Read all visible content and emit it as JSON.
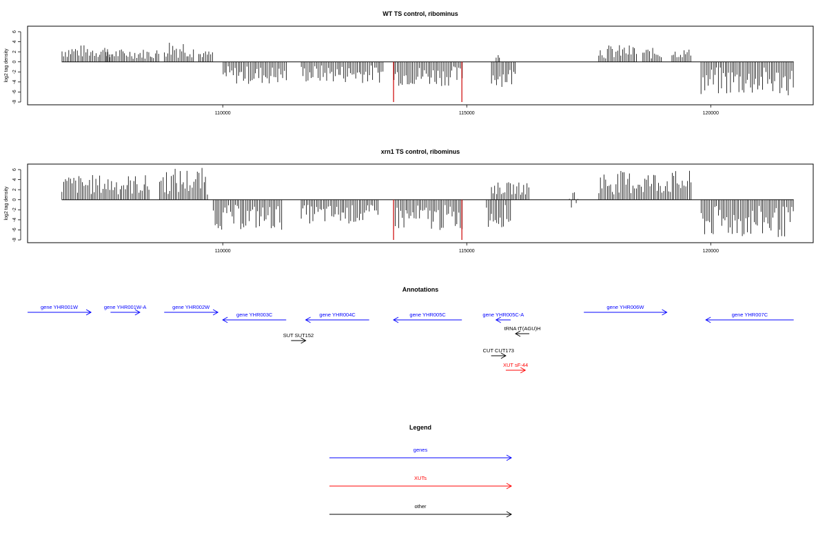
{
  "figure": {
    "annotations_title": "Annotations",
    "legend_title": "Legend"
  },
  "colors": {
    "genes": "#0000ff",
    "xuts": "#ff0000",
    "other": "#000000",
    "marker": "#cc0000"
  },
  "chart_data": [
    {
      "type": "bar",
      "title": "WT TS control, ribominus",
      "xlabel": "",
      "ylabel": "log2 tag density",
      "xlim": [
        106000,
        122100
      ],
      "ylim": [
        -8,
        6
      ],
      "x_ticks": [
        110000,
        115000,
        120000
      ],
      "y_ticks": [
        6,
        4,
        2,
        0,
        -2,
        -4,
        -6,
        -8
      ],
      "markers": [
        {
          "x": 113500,
          "y": -8
        },
        {
          "x": 114900,
          "y": -8
        }
      ],
      "segments": [
        {
          "start": 106700,
          "end": 107700,
          "min": 0.8,
          "max": 3.4
        },
        {
          "start": 107600,
          "end": 108700,
          "min": 0.6,
          "max": 2.6
        },
        {
          "start": 108800,
          "end": 109400,
          "min": 0.8,
          "max": 4.6
        },
        {
          "start": 109500,
          "end": 109800,
          "min": 0.8,
          "max": 2.2
        },
        {
          "start": 110000,
          "end": 111300,
          "min": -4.5,
          "max": -0.8
        },
        {
          "start": 111600,
          "end": 113300,
          "min": -4.2,
          "max": -0.6
        },
        {
          "start": 113500,
          "end": 114900,
          "min": -4.8,
          "max": -0.8
        },
        {
          "start": 115500,
          "end": 116000,
          "min": -5.0,
          "max": -1.0
        },
        {
          "start": 115600,
          "end": 115700,
          "min": 0.8,
          "max": 2.6
        },
        {
          "start": 117700,
          "end": 118500,
          "min": 0.6,
          "max": 3.4
        },
        {
          "start": 118600,
          "end": 119000,
          "min": 0.6,
          "max": 2.8
        },
        {
          "start": 119200,
          "end": 119600,
          "min": 0.8,
          "max": 2.6
        },
        {
          "start": 119800,
          "end": 121700,
          "min": -6.8,
          "max": -1.0
        }
      ]
    },
    {
      "type": "bar",
      "title": "xrn1 TS control, ribominus",
      "xlabel": "",
      "ylabel": "log2 tag density",
      "xlim": [
        106000,
        122100
      ],
      "ylim": [
        -8,
        6
      ],
      "x_ticks": [
        110000,
        115000,
        120000
      ],
      "y_ticks": [
        6,
        4,
        2,
        0,
        -2,
        -4,
        -6,
        -8
      ],
      "markers": [
        {
          "x": 113500,
          "y": -8
        },
        {
          "x": 114900,
          "y": -8
        }
      ],
      "segments": [
        {
          "start": 106700,
          "end": 108500,
          "min": 1.0,
          "max": 5.0
        },
        {
          "start": 108700,
          "end": 109700,
          "min": 1.0,
          "max": 6.4
        },
        {
          "start": 109800,
          "end": 111200,
          "min": -6.0,
          "max": -1.0
        },
        {
          "start": 111600,
          "end": 113200,
          "min": -4.8,
          "max": -1.0
        },
        {
          "start": 113500,
          "end": 114900,
          "min": -6.2,
          "max": -1.0
        },
        {
          "start": 115400,
          "end": 115900,
          "min": -5.5,
          "max": -1.0
        },
        {
          "start": 115500,
          "end": 116300,
          "min": 1.0,
          "max": 3.5
        },
        {
          "start": 117100,
          "end": 117300,
          "min": -2.6,
          "max": 3.0
        },
        {
          "start": 117700,
          "end": 119600,
          "min": 1.0,
          "max": 5.8
        },
        {
          "start": 119800,
          "end": 121700,
          "min": -7.6,
          "max": -1.2
        }
      ]
    }
  ],
  "annotations": [
    {
      "label": "gene YHR001W",
      "type": "gene",
      "strand": "+",
      "start": 106000,
      "end": 107300
    },
    {
      "label": "gene YHR001W-A",
      "type": "gene",
      "strand": "+",
      "start": 107700,
      "end": 108300
    },
    {
      "label": "gene YHR002W",
      "type": "gene",
      "strand": "+",
      "start": 108800,
      "end": 109900
    },
    {
      "label": "gene YHR003C",
      "type": "gene",
      "strand": "-",
      "start": 110000,
      "end": 111300
    },
    {
      "label": "gene YHR004C",
      "type": "gene",
      "strand": "-",
      "start": 111700,
      "end": 113000
    },
    {
      "label": "gene YHR005C",
      "type": "gene",
      "strand": "-",
      "start": 113500,
      "end": 114900
    },
    {
      "label": "gene YHR005C-A",
      "type": "gene",
      "strand": "-",
      "start": 115600,
      "end": 115900
    },
    {
      "label": "tRNA tT(AGU)H",
      "type": "other",
      "strand": "-",
      "start": 116000,
      "end": 116100
    },
    {
      "label": "SUT SUT152",
      "type": "other",
      "strand": "+",
      "start": 111400,
      "end": 111700
    },
    {
      "label": "CUT CUT173",
      "type": "other",
      "strand": "+",
      "start": 115500,
      "end": 115800
    },
    {
      "label": "XUT sF-44",
      "type": "xut",
      "strand": "+",
      "start": 115800,
      "end": 116200
    },
    {
      "label": "gene YHR006W",
      "type": "gene",
      "strand": "+",
      "start": 117400,
      "end": 119100
    },
    {
      "label": "gene YHR007C",
      "type": "gene",
      "strand": "-",
      "start": 119900,
      "end": 121700
    }
  ],
  "legend": [
    {
      "label": "genes",
      "color": "#0000ff"
    },
    {
      "label": "XUTs",
      "color": "#ff0000"
    },
    {
      "label": "other",
      "color": "#000000"
    }
  ]
}
